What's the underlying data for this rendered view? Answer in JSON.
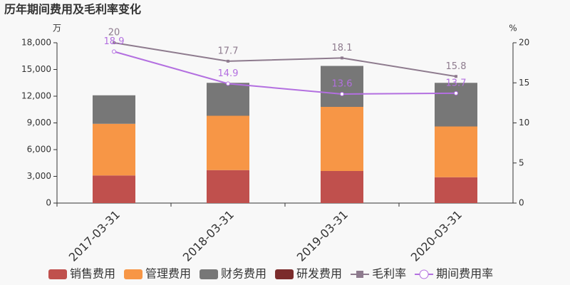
{
  "chart_data": {
    "type": "bar",
    "stacked": true,
    "title": "历年期间费用及毛利率变化",
    "y_unit": "万",
    "y2_unit": "%",
    "categories": [
      "2017-03-31",
      "2018-03-31",
      "2019-03-31",
      "2020-03-31"
    ],
    "series": [
      {
        "name": "销售费用",
        "color": "#c0504d",
        "values": [
          3100,
          3700,
          3600,
          2900
        ]
      },
      {
        "name": "管理费用",
        "color": "#f79646",
        "values": [
          5800,
          6100,
          7200,
          5700
        ]
      },
      {
        "name": "财务费用",
        "color": "#777777",
        "values": [
          3200,
          3700,
          4600,
          4900
        ]
      },
      {
        "name": "研发费用",
        "color": "#7b2c2c",
        "values": [
          0,
          0,
          0,
          0
        ]
      },
      {
        "name": "毛利率",
        "type": "line",
        "axis": "y2",
        "color": "#8e7b8e",
        "marker": "square",
        "values": [
          20,
          17.7,
          18.1,
          15.8
        ]
      },
      {
        "name": "期间费用率",
        "type": "line",
        "axis": "y2",
        "color": "#b36fe0",
        "marker": "circle",
        "values": [
          18.9,
          14.9,
          13.6,
          13.7
        ]
      }
    ],
    "ylim": [
      0,
      18000
    ],
    "yticks": [
      0,
      {
        "value": 3000,
        "label": "3,000"
      },
      {
        "value": 6000,
        "label": "6,000"
      },
      {
        "value": 9000,
        "label": "9,000"
      },
      {
        "value": 12000,
        "label": "12,000"
      },
      {
        "value": 15000,
        "label": "15,000"
      },
      {
        "value": 18000,
        "label": "18,000"
      }
    ],
    "y2lim": [
      0,
      20
    ],
    "y2ticks": [
      0,
      5,
      10,
      15,
      20
    ]
  }
}
